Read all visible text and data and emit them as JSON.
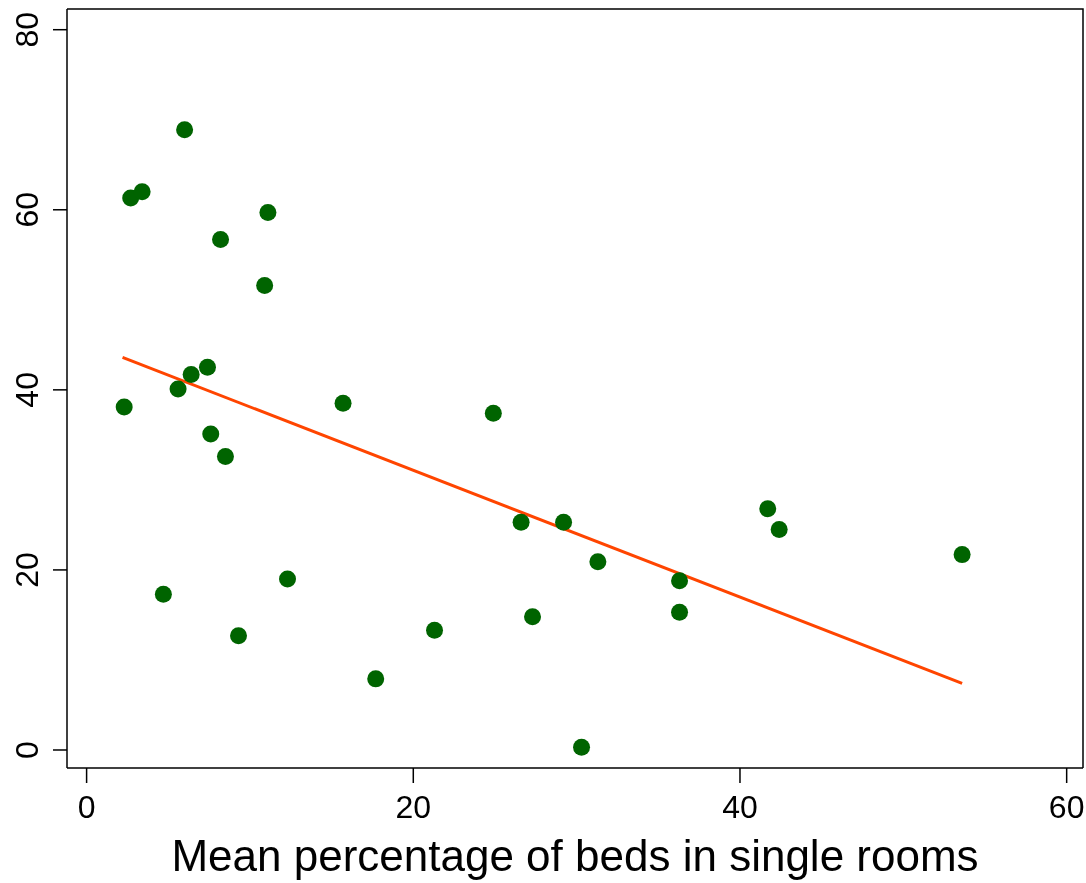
{
  "chart_data": {
    "type": "scatter",
    "xlabel": "Mean percentage of beds in single rooms",
    "xlim": [
      -1.2,
      61
    ],
    "ylim": [
      -2,
      82.3
    ],
    "xticks": [
      0,
      20,
      40,
      60
    ],
    "yticks": [
      0,
      20,
      40,
      60,
      80
    ],
    "marker": "circle",
    "series": [
      {
        "color": "#006400",
        "x": [
          6.0,
          2.7,
          3.4,
          11.1,
          8.2,
          10.9,
          7.4,
          6.4,
          5.6,
          2.3,
          15.7,
          7.6,
          8.5,
          4.7,
          12.3,
          9.3,
          17.7,
          24.9,
          26.6,
          29.2,
          31.3,
          36.3,
          36.3,
          27.3,
          21.3,
          30.3,
          41.7,
          42.4,
          53.6
        ],
        "values": [
          68.9,
          61.3,
          62.0,
          59.7,
          56.7,
          51.6,
          42.5,
          41.7,
          40.1,
          38.1,
          38.5,
          35.1,
          32.6,
          17.3,
          19.0,
          12.7,
          7.9,
          37.4,
          25.3,
          25.3,
          20.9,
          18.8,
          15.3,
          14.8,
          13.3,
          0.3,
          26.8,
          24.5,
          21.7
        ]
      },
      {
        "type": "line",
        "color": "#ff4500",
        "marker": "none",
        "line_style": "solid",
        "x": [
          2.2,
          53.6
        ],
        "values": [
          43.6,
          7.4
        ]
      }
    ]
  }
}
